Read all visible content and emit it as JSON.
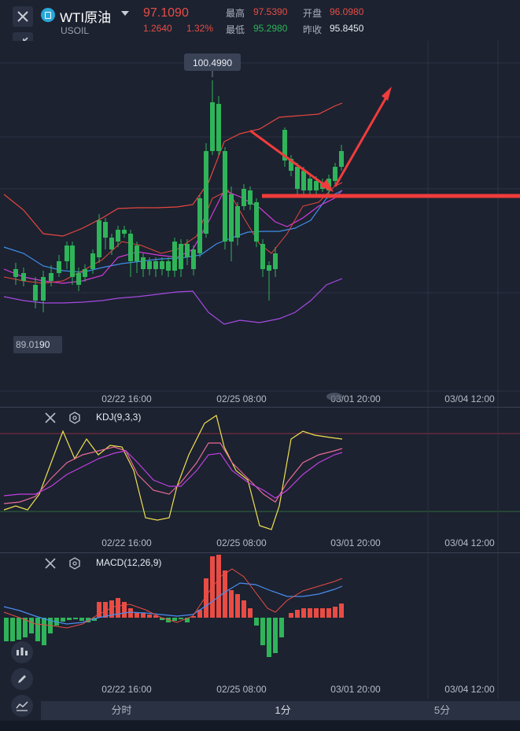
{
  "header": {
    "title": "WTI原油",
    "symbol": "USOIL",
    "price": "97.1090",
    "change": "1.2640",
    "change_pct": "1.32%",
    "high_label": "最高",
    "high": "97.5390",
    "low_label": "最低",
    "low": "95.2980",
    "open_label": "开盘",
    "open": "96.0980",
    "prev_close_label": "昨收",
    "prev_close": "95.8450"
  },
  "main_chart": {
    "max_price_label": "100.4990",
    "min_price_label": "89.01",
    "min_price_label_suffix": "90",
    "x_ticks": [
      "02/22 16:00",
      "02/25 08:00",
      "03/01 20:00",
      "03/04 12:00"
    ]
  },
  "kdj": {
    "label": "KDJ(9,3,3)",
    "x_ticks": [
      "02/22 16:00",
      "02/25 08:00",
      "03/01 20:00",
      "03/04 12:00"
    ]
  },
  "macd": {
    "label": "MACD(12,26,9)",
    "x_ticks": [
      "02/22 16:00",
      "02/25 08:00",
      "03/01 20:00",
      "03/04 12:00"
    ]
  },
  "tabs": [
    "分时",
    "1分",
    "5分"
  ],
  "colors": {
    "up": "#e84c44",
    "down": "#2fb45a",
    "bg": "#1c2230",
    "kdj_k": "#f0e050",
    "kdj_d": "#e86a9a",
    "kdj_j": "#c040e0",
    "macd_dif": "#4a8cf0",
    "macd_dea": "#e84c44"
  },
  "icons": {
    "close": "close-icon",
    "collapse": "collapse-arrows-icon",
    "settings": "hexagon-settings-icon",
    "indicators": "candles-icon",
    "draw": "pencil-icon",
    "chart_type": "line-chart-icon"
  }
}
